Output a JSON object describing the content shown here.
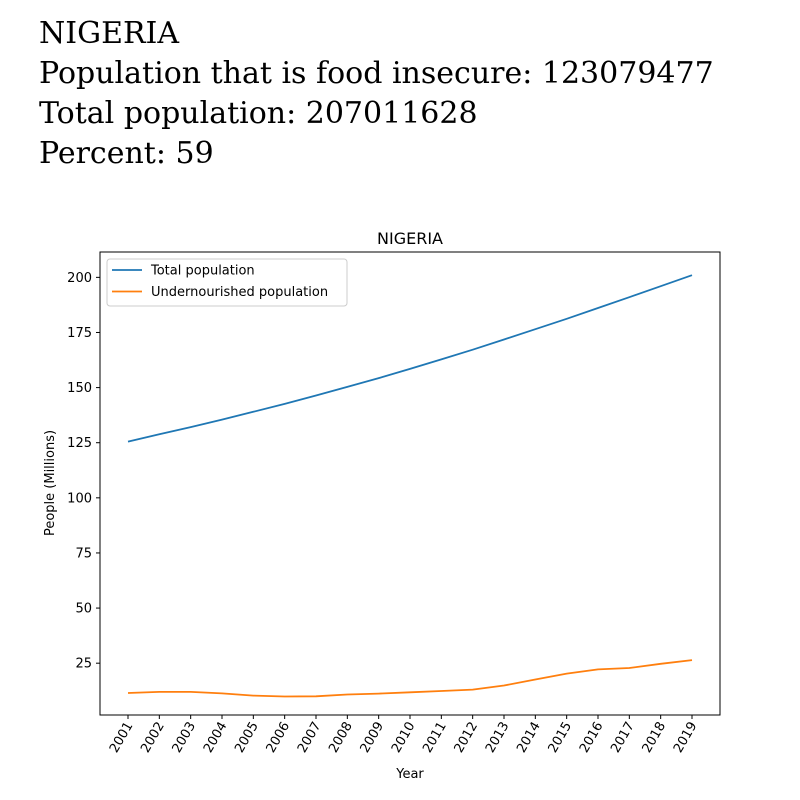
{
  "header": {
    "country": "NIGERIA",
    "food_insecure_label": "Population that is food insecure: 123079477",
    "total_label": "Total population: 207011628",
    "percent_label": "Percent: 59"
  },
  "colors": {
    "total": "#1f77b4",
    "undernourished": "#ff7f0e"
  },
  "chart_data": {
    "type": "line",
    "title": "NIGERIA",
    "xlabel": "Year",
    "ylabel": "People (Millions)",
    "x": [
      "2001",
      "2002",
      "2003",
      "2004",
      "2005",
      "2006",
      "2007",
      "2008",
      "2009",
      "2010",
      "2011",
      "2012",
      "2013",
      "2014",
      "2015",
      "2016",
      "2017",
      "2018",
      "2019"
    ],
    "yticks": [
      25,
      50,
      75,
      100,
      125,
      150,
      175,
      200
    ],
    "ylim": [
      1.5,
      211.5
    ],
    "legend_position": "upper-left",
    "series": [
      {
        "name": "Total population",
        "values": [
          125.5,
          128.8,
          132.1,
          135.5,
          139.0,
          142.6,
          146.4,
          150.3,
          154.3,
          158.5,
          162.8,
          167.2,
          171.8,
          176.5,
          181.2,
          186.1,
          191.0,
          196.0,
          201.0
        ]
      },
      {
        "name": "Undernourished population",
        "values": [
          11.5,
          12.0,
          12.0,
          11.3,
          10.3,
          9.9,
          10.0,
          10.8,
          11.2,
          11.8,
          12.4,
          13.0,
          14.9,
          17.6,
          20.3,
          22.2,
          22.8,
          24.7,
          26.4
        ]
      }
    ]
  }
}
